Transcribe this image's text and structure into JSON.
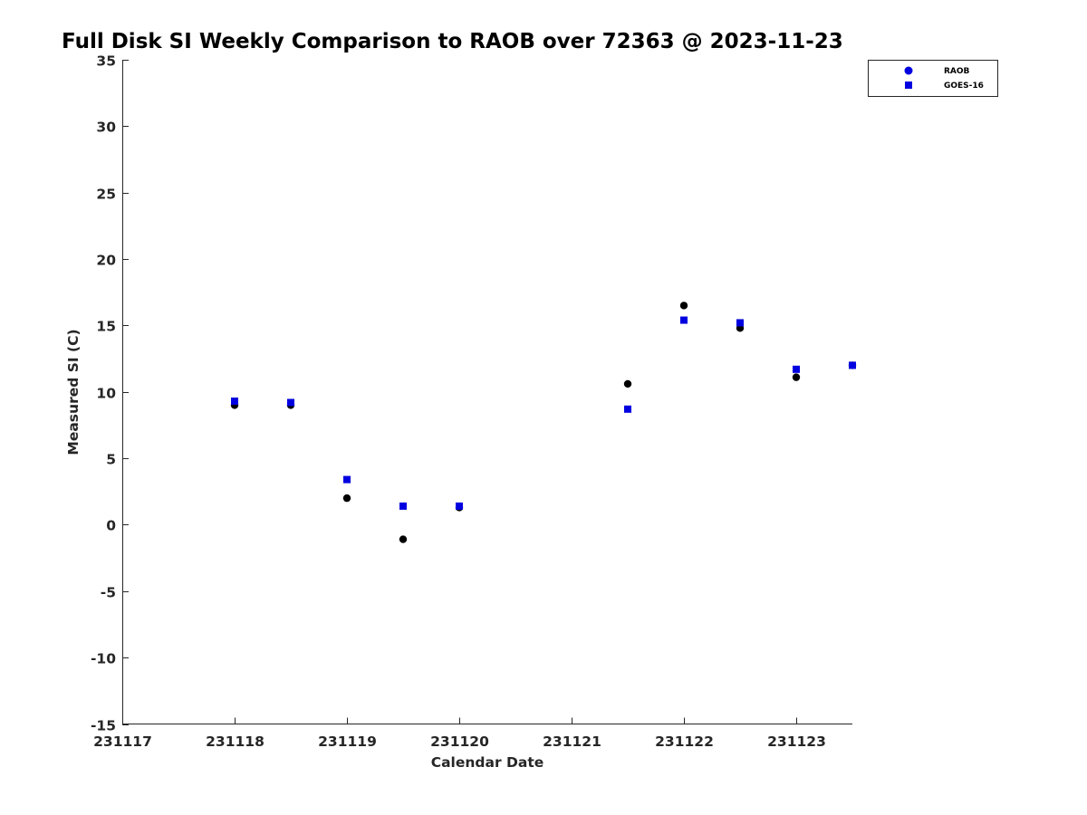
{
  "chart_data": {
    "type": "scatter",
    "title": "Full Disk SI Weekly Comparison to RAOB over 72363 @ 2023-11-23",
    "xlabel": "Calendar Date",
    "ylabel": "Measured SI (C)",
    "x_tick_labels": [
      "231117",
      "231118",
      "231119",
      "231120",
      "231121",
      "231122",
      "231123"
    ],
    "xlim_days": [
      0,
      6.5
    ],
    "ylim": [
      -15,
      35
    ],
    "y_ticks": [
      -15,
      -10,
      -5,
      0,
      5,
      10,
      15,
      20,
      25,
      30,
      35
    ],
    "grid": false,
    "legend_position": "top-right",
    "series": [
      {
        "name": "RAOB",
        "marker": "circle",
        "color": "#000000",
        "legend_color": "#0000e0",
        "points": [
          {
            "x": "231118 00Z",
            "day": 1.0,
            "y": 9.0
          },
          {
            "x": "231118 12Z",
            "day": 1.5,
            "y": 9.0
          },
          {
            "x": "231119 00Z",
            "day": 2.0,
            "y": 2.0
          },
          {
            "x": "231119 12Z",
            "day": 2.5,
            "y": -1.1
          },
          {
            "x": "231120 00Z",
            "day": 3.0,
            "y": 1.3
          },
          {
            "x": "231121 12Z",
            "day": 4.5,
            "y": 10.6
          },
          {
            "x": "231122 00Z",
            "day": 5.0,
            "y": 16.5
          },
          {
            "x": "231122 12Z",
            "day": 5.5,
            "y": 14.8
          },
          {
            "x": "231123 00Z",
            "day": 6.0,
            "y": 11.1
          },
          {
            "x": "231123 12Z",
            "day": 6.5,
            "y": 12.0
          }
        ]
      },
      {
        "name": "GOES-16",
        "marker": "square",
        "color": "#0000e0",
        "legend_color": "#0000e0",
        "points": [
          {
            "x": "231118 00Z",
            "day": 1.0,
            "y": 9.3
          },
          {
            "x": "231118 12Z",
            "day": 1.5,
            "y": 9.2
          },
          {
            "x": "231119 00Z",
            "day": 2.0,
            "y": 3.4
          },
          {
            "x": "231119 12Z",
            "day": 2.5,
            "y": 1.4
          },
          {
            "x": "231120 00Z",
            "day": 3.0,
            "y": 1.4
          },
          {
            "x": "231121 12Z",
            "day": 4.5,
            "y": 8.7
          },
          {
            "x": "231122 00Z",
            "day": 5.0,
            "y": 15.4
          },
          {
            "x": "231122 12Z",
            "day": 5.5,
            "y": 15.2
          },
          {
            "x": "231123 00Z",
            "day": 6.0,
            "y": 11.7
          },
          {
            "x": "231123 12Z",
            "day": 6.5,
            "y": 12.0
          }
        ]
      }
    ]
  }
}
